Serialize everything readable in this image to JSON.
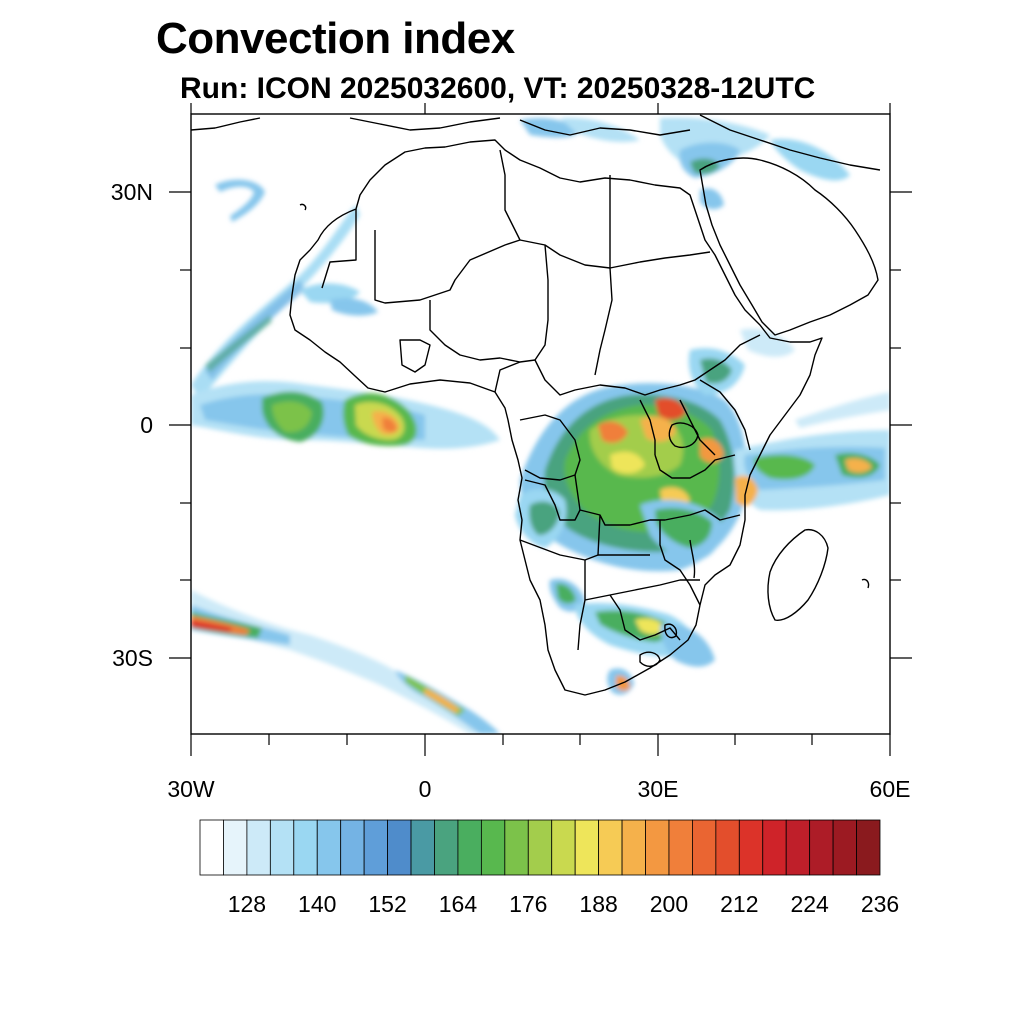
{
  "title": "Convection index",
  "subtitle": "Run: ICON 2025032600,  VT: 20250328-12UTC",
  "axes": {
    "lat_labels": [
      "30N",
      "0",
      "30S"
    ],
    "lon_labels": [
      "30W",
      "0",
      "30E",
      "60E"
    ]
  },
  "colorbar": {
    "tick_labels": [
      "128",
      "140",
      "152",
      "164",
      "176",
      "188",
      "200",
      "212",
      "224",
      "236"
    ],
    "colors": [
      "#ffffff",
      "#e6f4fb",
      "#cdeaf8",
      "#b4e1f5",
      "#9ad7f2",
      "#86c6ec",
      "#74b3e4",
      "#5f9ed9",
      "#4f8ccb",
      "#4a9aa4",
      "#4aa37f",
      "#4aae5f",
      "#58b84e",
      "#7cc24a",
      "#a3cd4c",
      "#c9d94f",
      "#eee55a",
      "#f6cb55",
      "#f5b14b",
      "#f39841",
      "#f07f3a",
      "#ea6532",
      "#e34e2c",
      "#dc3329",
      "#cf2329",
      "#bf1f2a",
      "#ad1c27",
      "#9c1a22",
      "#8a1a1e"
    ]
  },
  "legend_colors": {
    "land_outline": "#000000",
    "background": "#ffffff"
  }
}
